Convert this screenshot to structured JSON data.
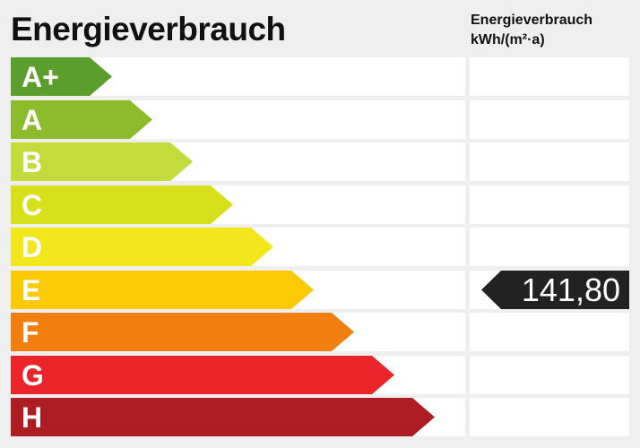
{
  "title": "Energieverbrauch",
  "column_header": {
    "line1": "Energieverbrauch",
    "line2": "kWh/(m²·a)"
  },
  "classes": [
    {
      "label": "A+",
      "color": "#5c9e2e"
    },
    {
      "label": "A",
      "color": "#8cbb2b"
    },
    {
      "label": "B",
      "color": "#c3dc3b"
    },
    {
      "label": "C",
      "color": "#d7e01a"
    },
    {
      "label": "D",
      "color": "#f2e71c"
    },
    {
      "label": "E",
      "color": "#fcca05"
    },
    {
      "label": "F",
      "color": "#f07f0f"
    },
    {
      "label": "G",
      "color": "#ea2428"
    },
    {
      "label": "H",
      "color": "#ae1c24"
    }
  ],
  "value": {
    "text": "141,80",
    "class": "E",
    "color": "#222222"
  }
}
